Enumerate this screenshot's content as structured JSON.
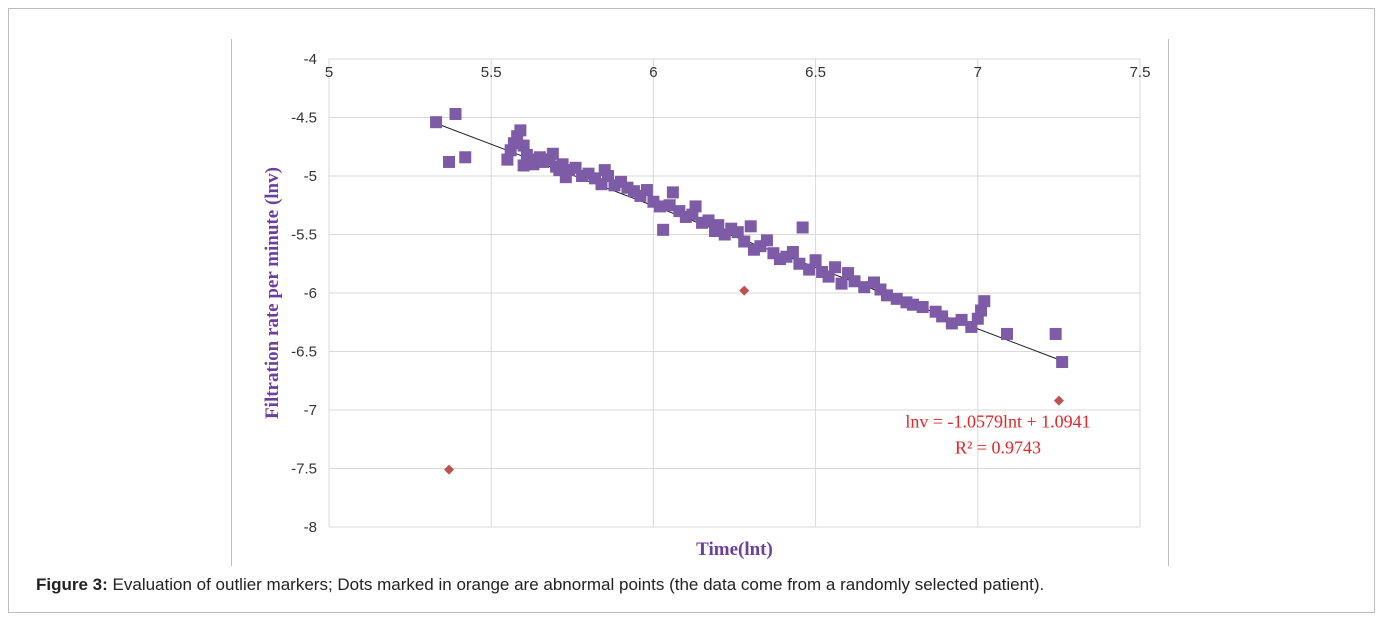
{
  "caption": {
    "label": "Figure 3:",
    "text": " Evaluation of outlier markers; Dots marked in orange are abnormal points (the data come from a randomly selected patient)."
  },
  "colors": {
    "normal": "#7d5ba6",
    "outlier": "#c0504d",
    "trend": "#1a1a1a",
    "grid": "#d9d9d9",
    "equation": "#e0262a",
    "axis_title": "#6d3f9c"
  },
  "chart_data": {
    "type": "scatter",
    "xlabel": "Time(lnt)",
    "ylabel": "Filtration rate per minute (lnv)",
    "xlim": [
      5,
      7.5
    ],
    "ylim": [
      -8,
      -4
    ],
    "xticks": [
      "5",
      "5.5",
      "6",
      "6.5",
      "7",
      "7.5"
    ],
    "yticks": [
      "-4",
      "-4.5",
      "-5",
      "-5.5",
      "-6",
      "-6.5",
      "-7",
      "-7.5",
      "-8"
    ],
    "grid": "vertical and horizontal",
    "x_axis_position": "top",
    "trendline": {
      "slope": -1.0579,
      "intercept": 1.0941,
      "x_range": [
        5.33,
        7.26
      ],
      "equation": "lnv = -1.0579lnt + 1.0941",
      "r_squared": "R² = 0.9743"
    },
    "series": [
      {
        "marker": "square",
        "color": "#7d5ba6",
        "points": [
          [
            5.33,
            -4.54
          ],
          [
            5.37,
            -4.88
          ],
          [
            5.39,
            -4.47
          ],
          [
            5.42,
            -4.84
          ],
          [
            5.55,
            -4.86
          ],
          [
            5.56,
            -4.78
          ],
          [
            5.57,
            -4.72
          ],
          [
            5.58,
            -4.66
          ],
          [
            5.59,
            -4.61
          ],
          [
            5.6,
            -4.74
          ],
          [
            5.6,
            -4.91
          ],
          [
            5.61,
            -4.82
          ],
          [
            5.62,
            -4.86
          ],
          [
            5.63,
            -4.9
          ],
          [
            5.65,
            -4.84
          ],
          [
            5.66,
            -4.88
          ],
          [
            5.68,
            -4.86
          ],
          [
            5.69,
            -4.81
          ],
          [
            5.7,
            -4.92
          ],
          [
            5.71,
            -4.95
          ],
          [
            5.72,
            -4.9
          ],
          [
            5.73,
            -5.01
          ],
          [
            5.74,
            -4.95
          ],
          [
            5.76,
            -4.93
          ],
          [
            5.78,
            -5.0
          ],
          [
            5.8,
            -4.98
          ],
          [
            5.82,
            -5.02
          ],
          [
            5.84,
            -5.07
          ],
          [
            5.85,
            -4.95
          ],
          [
            5.86,
            -5.0
          ],
          [
            5.88,
            -5.08
          ],
          [
            5.9,
            -5.05
          ],
          [
            5.92,
            -5.1
          ],
          [
            5.94,
            -5.13
          ],
          [
            5.96,
            -5.17
          ],
          [
            5.98,
            -5.12
          ],
          [
            6.0,
            -5.22
          ],
          [
            6.02,
            -5.26
          ],
          [
            6.03,
            -5.46
          ],
          [
            6.05,
            -5.25
          ],
          [
            6.06,
            -5.14
          ],
          [
            6.08,
            -5.3
          ],
          [
            6.1,
            -5.35
          ],
          [
            6.12,
            -5.33
          ],
          [
            6.13,
            -5.26
          ],
          [
            6.15,
            -5.4
          ],
          [
            6.17,
            -5.38
          ],
          [
            6.19,
            -5.47
          ],
          [
            6.2,
            -5.42
          ],
          [
            6.22,
            -5.5
          ],
          [
            6.24,
            -5.45
          ],
          [
            6.26,
            -5.48
          ],
          [
            6.28,
            -5.56
          ],
          [
            6.3,
            -5.43
          ],
          [
            6.31,
            -5.63
          ],
          [
            6.33,
            -5.6
          ],
          [
            6.35,
            -5.55
          ],
          [
            6.37,
            -5.66
          ],
          [
            6.39,
            -5.71
          ],
          [
            6.41,
            -5.69
          ],
          [
            6.43,
            -5.65
          ],
          [
            6.45,
            -5.75
          ],
          [
            6.46,
            -5.44
          ],
          [
            6.48,
            -5.8
          ],
          [
            6.5,
            -5.72
          ],
          [
            6.52,
            -5.82
          ],
          [
            6.54,
            -5.86
          ],
          [
            6.56,
            -5.78
          ],
          [
            6.58,
            -5.92
          ],
          [
            6.6,
            -5.83
          ],
          [
            6.62,
            -5.9
          ],
          [
            6.65,
            -5.95
          ],
          [
            6.68,
            -5.91
          ],
          [
            6.7,
            -5.97
          ],
          [
            6.72,
            -6.02
          ],
          [
            6.75,
            -6.05
          ],
          [
            6.78,
            -6.08
          ],
          [
            6.8,
            -6.1
          ],
          [
            6.83,
            -6.12
          ],
          [
            6.87,
            -6.16
          ],
          [
            6.89,
            -6.2
          ],
          [
            6.92,
            -6.26
          ],
          [
            6.95,
            -6.23
          ],
          [
            6.98,
            -6.29
          ],
          [
            7.0,
            -6.22
          ],
          [
            7.01,
            -6.15
          ],
          [
            7.02,
            -6.07
          ],
          [
            7.09,
            -6.35
          ],
          [
            7.24,
            -6.35
          ],
          [
            7.26,
            -6.59
          ]
        ]
      },
      {
        "marker": "diamond",
        "color": "#c0504d",
        "points": [
          [
            5.37,
            -7.51
          ],
          [
            6.28,
            -5.98
          ],
          [
            7.25,
            -6.92
          ]
        ]
      }
    ]
  }
}
